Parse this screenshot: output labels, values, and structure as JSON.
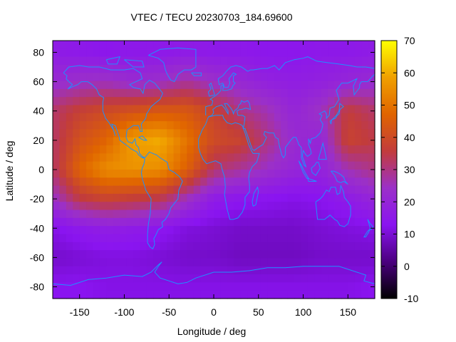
{
  "chart_data": {
    "type": "heatmap",
    "title": "VTEC / TECU 20230703_184.69600",
    "xlabel": "Longitude / deg",
    "ylabel": "Latitude / deg",
    "xlim": [
      -180,
      180
    ],
    "ylim": [
      -88,
      88
    ],
    "xticks": [
      -150,
      -100,
      -50,
      0,
      50,
      100,
      150
    ],
    "yticks": [
      -80,
      -60,
      -40,
      -20,
      0,
      20,
      40,
      60,
      80
    ],
    "colorbar": {
      "range": [
        -10,
        70
      ],
      "ticks": [
        -10,
        0,
        10,
        20,
        30,
        40,
        50,
        60,
        70
      ],
      "palette": [
        "#000000",
        "#4b007f",
        "#8a14f0",
        "#9b30c8",
        "#c23c3c",
        "#e06400",
        "#f0a000",
        "#ffff00"
      ]
    },
    "grid": false,
    "overlay": "coastlines",
    "overlay_color": "#1e90ff",
    "grid_lon": [
      -180,
      -150,
      -120,
      -90,
      -60,
      -30,
      0,
      30,
      60,
      90,
      120,
      150,
      180
    ],
    "grid_lat": [
      80,
      60,
      40,
      20,
      0,
      -20,
      -40,
      -60,
      -80
    ],
    "z_approx_tecu": [
      [
        16,
        15,
        14,
        15,
        15,
        16,
        15,
        15,
        14,
        14,
        15,
        15,
        16
      ],
      [
        22,
        24,
        25,
        22,
        24,
        28,
        24,
        21,
        18,
        17,
        18,
        20,
        22
      ],
      [
        32,
        37,
        40,
        42,
        44,
        44,
        38,
        30,
        26,
        20,
        25,
        36,
        32
      ],
      [
        32,
        42,
        47,
        58,
        60,
        50,
        40,
        38,
        30,
        22,
        20,
        38,
        35
      ],
      [
        32,
        47,
        55,
        56,
        55,
        46,
        32,
        28,
        24,
        20,
        19,
        26,
        30
      ],
      [
        24,
        35,
        38,
        36,
        34,
        25,
        16,
        14,
        13,
        12,
        13,
        16,
        20
      ],
      [
        12,
        15,
        17,
        16,
        14,
        11,
        10,
        9,
        9,
        9,
        10,
        11,
        12
      ],
      [
        9,
        10,
        11,
        11,
        10,
        9,
        9,
        8,
        8,
        8,
        9,
        9,
        9
      ],
      [
        13,
        13,
        12,
        12,
        12,
        12,
        12,
        12,
        12,
        12,
        12,
        12,
        13
      ]
    ]
  }
}
